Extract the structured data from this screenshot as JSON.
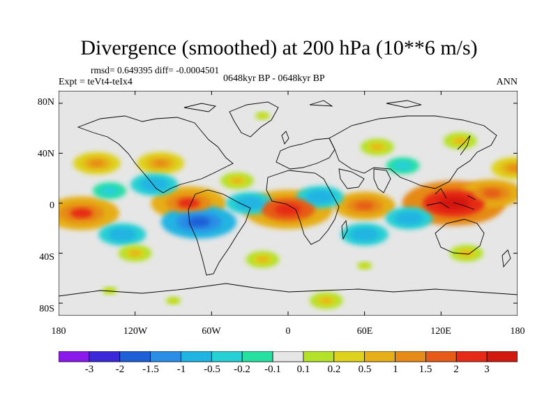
{
  "title": "Divergence (smoothed) at 200 hPa (10**6 m/s)",
  "stats_line": "rmsd= 0.649395 diff= -0.0004501",
  "experiment": "Expt = teVt4-teIx4",
  "period": "0648kyr BP - 0648kyr BP",
  "season": "ANN",
  "axes": {
    "y_ticks": [
      "80N",
      "40N",
      "0",
      "40S",
      "80S"
    ],
    "x_ticks": [
      "180",
      "120W",
      "60W",
      "0",
      "60E",
      "120E",
      "180"
    ],
    "x_range": [
      -180,
      180
    ],
    "y_range": [
      -90,
      90
    ]
  },
  "colorbar": {
    "labels": [
      "-3",
      "-2",
      "-1.5",
      "-1",
      "-0.5",
      "-0.2",
      "-0.1",
      "0.1",
      "0.2",
      "0.5",
      "1",
      "1.5",
      "2",
      "3"
    ],
    "colors": [
      "#8a19ea",
      "#3c28d8",
      "#1d5fd6",
      "#2a8ee6",
      "#20b4e2",
      "#27d0d4",
      "#26e0a2",
      "#e6e6e6",
      "#b4e22a",
      "#dfd21c",
      "#e6ae18",
      "#e68a18",
      "#e65b18",
      "#e62a18",
      "#d2190f"
    ]
  },
  "chart_data": {
    "type": "heatmap",
    "title": "Divergence (smoothed) at 200 hPa (10**6 m/s)",
    "xlim": [
      -180,
      180
    ],
    "ylim": [
      -90,
      90
    ],
    "features": [
      {
        "lon": -162,
        "lat": -8,
        "value": 2
      },
      {
        "lon": -78,
        "lat": 0,
        "value": 2
      },
      {
        "lon": 0,
        "lat": -5,
        "value": 2.5
      },
      {
        "lon": 60,
        "lat": -2,
        "value": 1.5
      },
      {
        "lon": 130,
        "lat": 0,
        "value": 3
      },
      {
        "lon": 160,
        "lat": 8,
        "value": 1.5
      },
      {
        "lon": 178,
        "lat": 28,
        "value": 1
      },
      {
        "lon": -150,
        "lat": 32,
        "value": 1
      },
      {
        "lon": -100,
        "lat": 32,
        "value": 1
      },
      {
        "lon": -40,
        "lat": 18,
        "value": 0.5
      },
      {
        "lon": -105,
        "lat": 15,
        "value": -1
      },
      {
        "lon": -70,
        "lat": -15,
        "value": -2
      },
      {
        "lon": -30,
        "lat": 0,
        "value": -1
      },
      {
        "lon": 25,
        "lat": 5,
        "value": -1
      },
      {
        "lon": 60,
        "lat": -25,
        "value": -1
      },
      {
        "lon": 95,
        "lat": -12,
        "value": -1
      },
      {
        "lon": 90,
        "lat": 30,
        "value": -0.5
      },
      {
        "lon": -130,
        "lat": -25,
        "value": -1
      },
      {
        "lon": -140,
        "lat": 10,
        "value": -0.5
      },
      {
        "lon": -120,
        "lat": -40,
        "value": 0.5
      },
      {
        "lon": -20,
        "lat": -45,
        "value": 0.5
      },
      {
        "lon": 60,
        "lat": -50,
        "value": 0.2
      },
      {
        "lon": 140,
        "lat": -40,
        "value": 0.5
      },
      {
        "lon": -140,
        "lat": -70,
        "value": 0.2
      },
      {
        "lon": 30,
        "lat": -78,
        "value": 0.5
      },
      {
        "lon": -90,
        "lat": -78,
        "value": 0.2
      },
      {
        "lon": 70,
        "lat": 45,
        "value": 0.5
      },
      {
        "lon": 135,
        "lat": 50,
        "value": 0.5
      },
      {
        "lon": -20,
        "lat": 70,
        "value": 0.2
      }
    ]
  }
}
